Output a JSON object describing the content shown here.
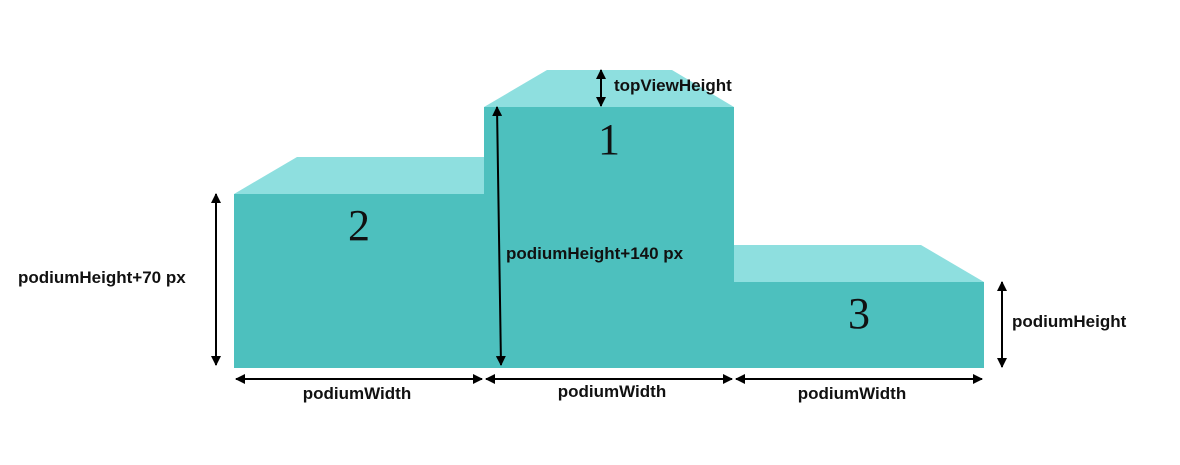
{
  "colors": {
    "front": "#4dc0be",
    "top": "#8edfdf",
    "arrow": "#000000",
    "text": "#111111",
    "background": "#ffffff"
  },
  "podiums": {
    "first": {
      "rank": "1"
    },
    "second": {
      "rank": "2"
    },
    "third": {
      "rank": "3"
    }
  },
  "labels": {
    "top_view_height": "topViewHeight",
    "second_height": "podiumHeight+70 px",
    "first_height": "podiumHeight+140 px",
    "third_height": "podiumHeight",
    "width_left": "podiumWidth",
    "width_center": "podiumWidth",
    "width_right": "podiumWidth"
  }
}
